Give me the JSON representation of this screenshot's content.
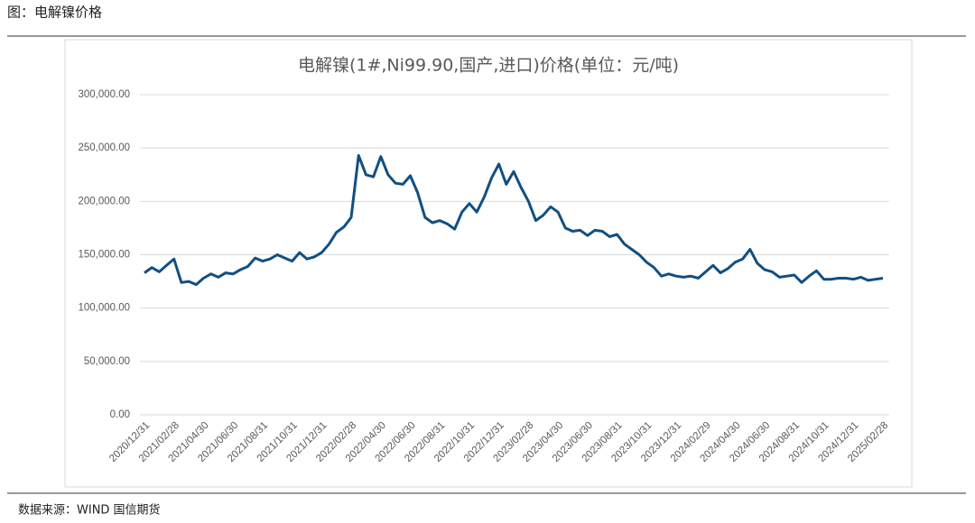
{
  "header": "图：电解镍价格",
  "source": "数据来源：WIND 国信期货",
  "chart_data": {
    "type": "line",
    "title": "电解镍(1#,Ni99.90,国产,进口)价格(单位：元/吨)",
    "categories": [
      "2020/12/31",
      null,
      null,
      null,
      "2021/02/28",
      null,
      null,
      null,
      "2021/04/30",
      null,
      null,
      null,
      "2021/06/30",
      null,
      null,
      null,
      "2021/08/31",
      null,
      null,
      null,
      "2021/10/31",
      null,
      null,
      null,
      "2021/12/31",
      null,
      null,
      null,
      "2022/02/28",
      null,
      null,
      null,
      "2022/04/30",
      null,
      null,
      null,
      "2022/06/30",
      null,
      null,
      null,
      "2022/08/31",
      null,
      null,
      null,
      "2022/10/31",
      null,
      null,
      null,
      "2022/12/31",
      null,
      null,
      null,
      "2023/02/28",
      null,
      null,
      null,
      "2023/04/30",
      null,
      null,
      null,
      "2023/06/30",
      null,
      null,
      null,
      "2023/08/31",
      null,
      null,
      null,
      "2023/10/31",
      null,
      null,
      null,
      "2023/12/31",
      null,
      null,
      null,
      "2024/02/29",
      null,
      null,
      null,
      "2024/04/30",
      null,
      null,
      null,
      "2024/06/30",
      null,
      null,
      null,
      "2024/08/31",
      null,
      null,
      null,
      "2024/10/31",
      null,
      null,
      null,
      "2024/12/31",
      null,
      null,
      null,
      "2025/02/28"
    ],
    "series": [
      {
        "color": "#124f82",
        "values": [
          133000,
          138000,
          134000,
          140000,
          146000,
          124000,
          125000,
          122000,
          128000,
          132000,
          129000,
          133000,
          132000,
          136000,
          139000,
          147000,
          144000,
          146000,
          150000,
          147000,
          144000,
          152000,
          146000,
          148000,
          152000,
          160000,
          171000,
          176000,
          185000,
          243000,
          225000,
          223000,
          242000,
          225000,
          217000,
          216000,
          224000,
          208000,
          185000,
          180000,
          182000,
          179000,
          174000,
          190000,
          198000,
          190000,
          204000,
          222000,
          235000,
          216000,
          228000,
          213000,
          200000,
          182000,
          187000,
          195000,
          190000,
          175000,
          172000,
          173000,
          168000,
          173000,
          172000,
          167000,
          169000,
          160000,
          155000,
          150000,
          143000,
          138000,
          130000,
          132000,
          130000,
          129000,
          130000,
          128000,
          134000,
          140000,
          133000,
          137000,
          143000,
          146000,
          155000,
          142000,
          136000,
          134000,
          129000,
          130000,
          131000,
          124000,
          130000,
          135000,
          127000,
          127000,
          128000,
          128000,
          127000,
          129000,
          126000,
          127000,
          128000
        ]
      }
    ],
    "ylim": [
      0,
      300000
    ],
    "yticks": [
      {
        "value": 0,
        "label": "0.00"
      },
      {
        "value": 50000,
        "label": "50,000.00"
      },
      {
        "value": 100000,
        "label": "100,000.00"
      },
      {
        "value": 150000,
        "label": "150,000.00"
      },
      {
        "value": 200000,
        "label": "200,000.00"
      },
      {
        "value": 250000,
        "label": "250,000.00"
      },
      {
        "value": 300000,
        "label": "300,000.00"
      }
    ],
    "grid": true
  }
}
